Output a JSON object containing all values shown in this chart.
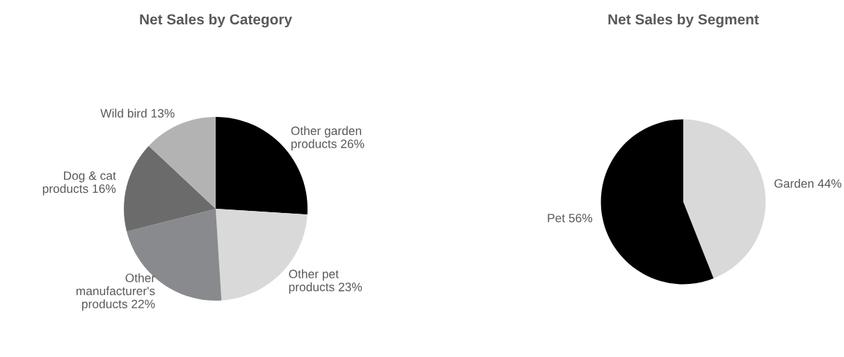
{
  "chart_data": [
    {
      "type": "pie",
      "title": "Net Sales by Category",
      "categories": [
        "Other garden\nproducts",
        "Other pet\nproducts",
        "Other\nmanufacturer's\nproducts",
        "Dog & cat\nproducts",
        "Wild bird"
      ],
      "values": [
        26,
        23,
        22,
        16,
        13
      ],
      "value_labels": [
        "26%",
        "23%",
        "22%",
        "16%",
        "13%"
      ],
      "colors": [
        "#000000",
        "#d9d9d9",
        "#898a8e",
        "#6b6b6b",
        "#b3b3b3"
      ]
    },
    {
      "type": "pie",
      "title": "Net Sales by Segment",
      "categories": [
        "Garden",
        "Pet"
      ],
      "values": [
        44,
        56
      ],
      "value_labels": [
        "44%",
        "56%"
      ],
      "colors": [
        "#d9d9d9",
        "#000000"
      ]
    }
  ]
}
